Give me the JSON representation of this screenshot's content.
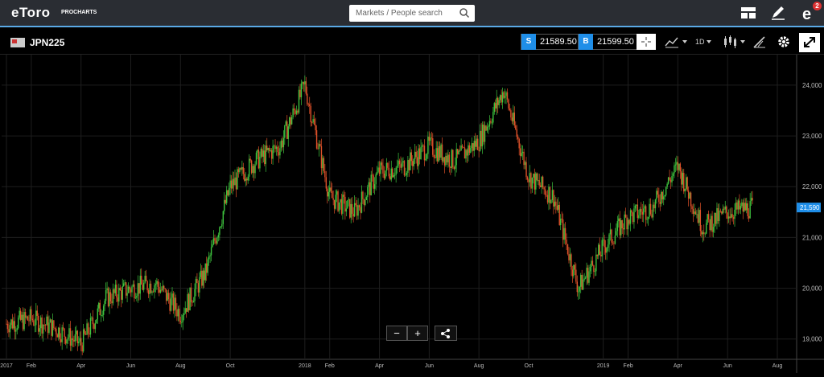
{
  "brand": {
    "name": "eToro",
    "sub": "PROCHARTS"
  },
  "search": {
    "placeholder": "Markets / People search"
  },
  "topbar": {
    "notifications": "2",
    "icons": [
      "layout-icon",
      "pencil-icon",
      "profile-icon"
    ]
  },
  "toolbar": {
    "symbol": "JPN225",
    "sell": {
      "tag": "S",
      "value": "21589.50"
    },
    "buy": {
      "tag": "B",
      "value": "21599.50"
    },
    "interval": "1D"
  },
  "colors": {
    "up": "#3ec43e",
    "down": "#e0522a",
    "accent": "#1f8ee8",
    "background": "#000000",
    "grid": "#1e1e1e"
  },
  "chart_data": {
    "type": "line",
    "style": "candlestick (OHLC)",
    "current_price_label": "21,590",
    "x_tick_labels": [
      "2017",
      "Feb",
      "Apr",
      "Jun",
      "Aug",
      "Oct",
      "2018",
      "Feb",
      "Apr",
      "Jun",
      "Aug",
      "Oct",
      "2019",
      "Feb",
      "Apr",
      "Jun",
      "Aug"
    ],
    "y_tick_labels": [
      "19,000",
      "20,000",
      "21,000",
      "22,000",
      "23,000",
      "24,000"
    ],
    "ylim": [
      18600,
      24600
    ],
    "grid": true,
    "series": [
      {
        "x": [
          "2017-01",
          "2017-02",
          "2017-03",
          "2017-04",
          "2017-05",
          "2017-06",
          "2017-07",
          "2017-08",
          "2017-09",
          "2017-10",
          "2017-11",
          "2017-12",
          "2018-01",
          "2018-02",
          "2018-03",
          "2018-04",
          "2018-05",
          "2018-06",
          "2018-07",
          "2018-08",
          "2018-09",
          "2018-10",
          "2018-11",
          "2018-12",
          "2019-01",
          "2019-02",
          "2019-03",
          "2019-04",
          "2019-05",
          "2019-06",
          "2019-07"
        ],
        "values": [
          19300,
          19400,
          19200,
          18900,
          19800,
          20000,
          20100,
          19500,
          20300,
          22000,
          22500,
          22800,
          24000,
          21800,
          21500,
          22300,
          22400,
          22800,
          22500,
          22900,
          23900,
          22200,
          21800,
          20000,
          20800,
          21400,
          21600,
          22400,
          21200,
          21500,
          21590
        ]
      }
    ]
  }
}
